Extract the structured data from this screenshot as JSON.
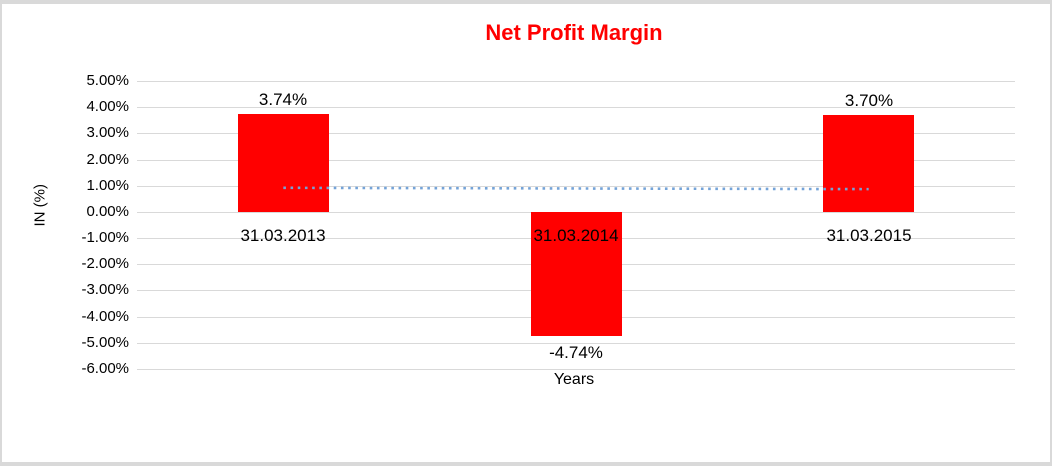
{
  "chart_data": {
    "type": "bar",
    "title": "Net Profit Margin",
    "title_color": "#ff0000",
    "categories": [
      "31.03.2013",
      "31.03.2014",
      "31.03.2015"
    ],
    "values": [
      3.74,
      -4.74,
      3.7
    ],
    "data_labels": [
      "3.74%",
      "-4.74%",
      "3.70%"
    ],
    "bar_color": "#ff0000",
    "xlabel": "Years",
    "ylabel": "IN (%)",
    "ylim": [
      -6,
      5
    ],
    "ytick_step": 1,
    "grid": true,
    "gridline_color": "#d9d9d9",
    "legend": "none",
    "yticks": [
      {
        "value": 5,
        "label": "5.00%"
      },
      {
        "value": 4,
        "label": "4.00%"
      },
      {
        "value": 3,
        "label": "3.00%"
      },
      {
        "value": 2,
        "label": "2.00%"
      },
      {
        "value": 1,
        "label": "1.00%"
      },
      {
        "value": 0,
        "label": "0.00%"
      },
      {
        "value": -1,
        "label": "-1.00%"
      },
      {
        "value": -2,
        "label": "-2.00%"
      },
      {
        "value": -3,
        "label": "-3.00%"
      },
      {
        "value": -4,
        "label": "-4.00%"
      },
      {
        "value": -5,
        "label": "-5.00%"
      },
      {
        "value": -6,
        "label": "-6.00%"
      }
    ],
    "trendline": {
      "style": "dotted",
      "color": "#74a3d8",
      "from_category_index": 0,
      "to_category_index": 2,
      "start_value": 0.92,
      "end_value": 0.87
    }
  }
}
